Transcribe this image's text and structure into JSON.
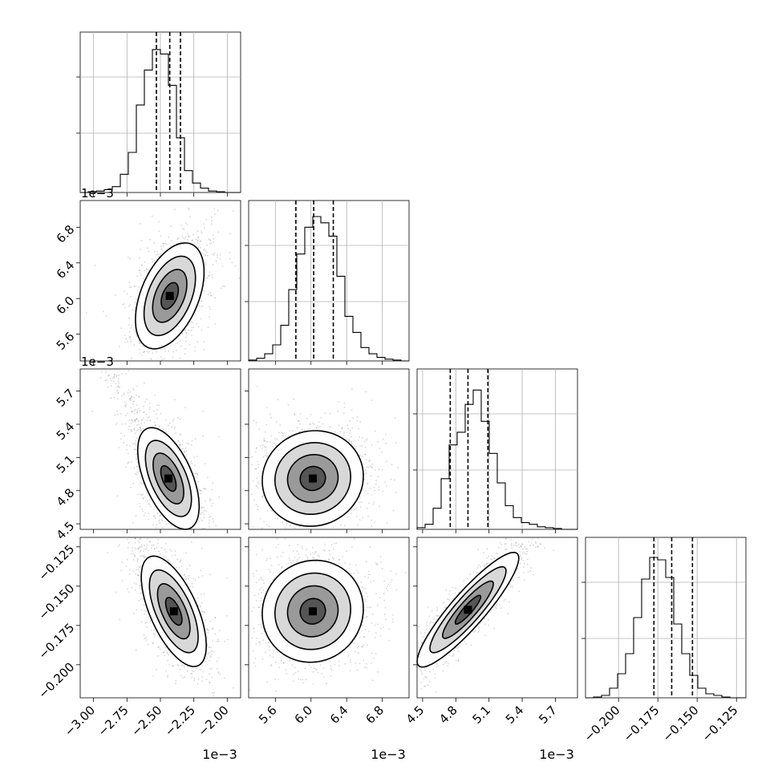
{
  "chart_data": {
    "type": "corner",
    "title": "",
    "scale_label": "1e−3",
    "params": [
      {
        "range": [
          -0.0031,
          -0.0019
        ],
        "ticks": [
          -0.003,
          -0.00275,
          -0.0025,
          -0.00225,
          -0.002
        ],
        "tick_labels": [
          "−3.00",
          "−2.75",
          "−2.50",
          "−2.25",
          "−2.00"
        ],
        "quantiles": [
          -0.00253,
          -0.00243,
          -0.00235
        ],
        "hist": {
          "edges_start": -0.0031,
          "bin_width": 6e-05,
          "counts": [
            0,
            1,
            2,
            4,
            8,
            25,
            55,
            120,
            168,
            196,
            190,
            147,
            75,
            30,
            13,
            6,
            2,
            1,
            0,
            0
          ],
          "max": 220
        },
        "offset_label": "1e−3"
      },
      {
        "range": [
          0.0053,
          0.0071
        ],
        "ticks": [
          0.0056,
          0.006,
          0.0064,
          0.0068
        ],
        "tick_labels": [
          "5.6",
          "6.0",
          "6.4",
          "6.8"
        ],
        "quantiles": [
          0.00583,
          0.00603,
          0.00625
        ],
        "hist": {
          "edges_start": 0.0053,
          "bin_width": 9e-05,
          "counts": [
            1,
            3,
            8,
            18,
            40,
            80,
            120,
            150,
            162,
            155,
            140,
            95,
            50,
            32,
            15,
            8,
            4,
            2,
            1,
            0
          ],
          "max": 180
        },
        "offset_label": "1e−3"
      },
      {
        "range": [
          0.00445,
          0.0059
        ],
        "ticks": [
          0.0045,
          0.0048,
          0.0051,
          0.0054,
          0.0057
        ],
        "tick_labels": [
          "4.5",
          "4.8",
          "5.1",
          "5.4",
          "5.7"
        ],
        "quantiles": [
          0.00475,
          0.00491,
          0.00509
        ],
        "hist": {
          "edges_start": 0.00445,
          "bin_width": 7.25e-05,
          "counts": [
            2,
            6,
            25,
            60,
            100,
            115,
            148,
            165,
            128,
            90,
            55,
            28,
            14,
            8,
            6,
            3,
            2,
            1,
            0,
            0
          ],
          "max": 190
        },
        "offset_label": "1e−3"
      },
      {
        "range": [
          -0.221,
          -0.119
        ],
        "ticks": [
          -0.2,
          -0.175,
          -0.15,
          -0.125
        ],
        "tick_labels": [
          "−0.200",
          "−0.175",
          "−0.150",
          "−0.125"
        ],
        "quantiles": [
          -0.1775,
          -0.1662,
          -0.153
        ],
        "hist": {
          "edges_start": -0.221,
          "bin_width": 0.0051,
          "counts": [
            0,
            1,
            3,
            12,
            30,
            55,
            100,
            148,
            175,
            172,
            150,
            92,
            55,
            28,
            12,
            5,
            3,
            1,
            0,
            0
          ],
          "max": 200
        },
        "offset_label": ""
      }
    ],
    "pairs": [
      {
        "row": 1,
        "col": 0,
        "mean": [
          -0.00243,
          0.00603
        ],
        "sd": [
          9.5e-05,
          0.00022
        ],
        "rho": 0.45,
        "tail": [
          0,
          0
        ]
      },
      {
        "row": 2,
        "col": 0,
        "mean": [
          -0.00244,
          0.00491
        ],
        "sd": [
          8.5e-05,
          0.00017
        ],
        "rho": -0.55,
        "tail": [
          -1,
          1
        ]
      },
      {
        "row": 2,
        "col": 1,
        "mean": [
          0.00602,
          0.00491
        ],
        "sd": [
          0.00021,
          0.00016
        ],
        "rho": 0.05,
        "tail": [
          0,
          0
        ]
      },
      {
        "row": 3,
        "col": 0,
        "mean": [
          -0.0024,
          -0.166
        ],
        "sd": [
          9e-05,
          0.013
        ],
        "rho": -0.62,
        "tail": [
          -1,
          1
        ]
      },
      {
        "row": 3,
        "col": 1,
        "mean": [
          0.00602,
          -0.166
        ],
        "sd": [
          0.00021,
          0.012
        ],
        "rho": 0.05,
        "tail": [
          0,
          0
        ]
      },
      {
        "row": 3,
        "col": 2,
        "mean": [
          0.00491,
          -0.165
        ],
        "sd": [
          0.00017,
          0.0135
        ],
        "rho": 0.9,
        "tail": [
          1,
          1
        ]
      }
    ]
  }
}
